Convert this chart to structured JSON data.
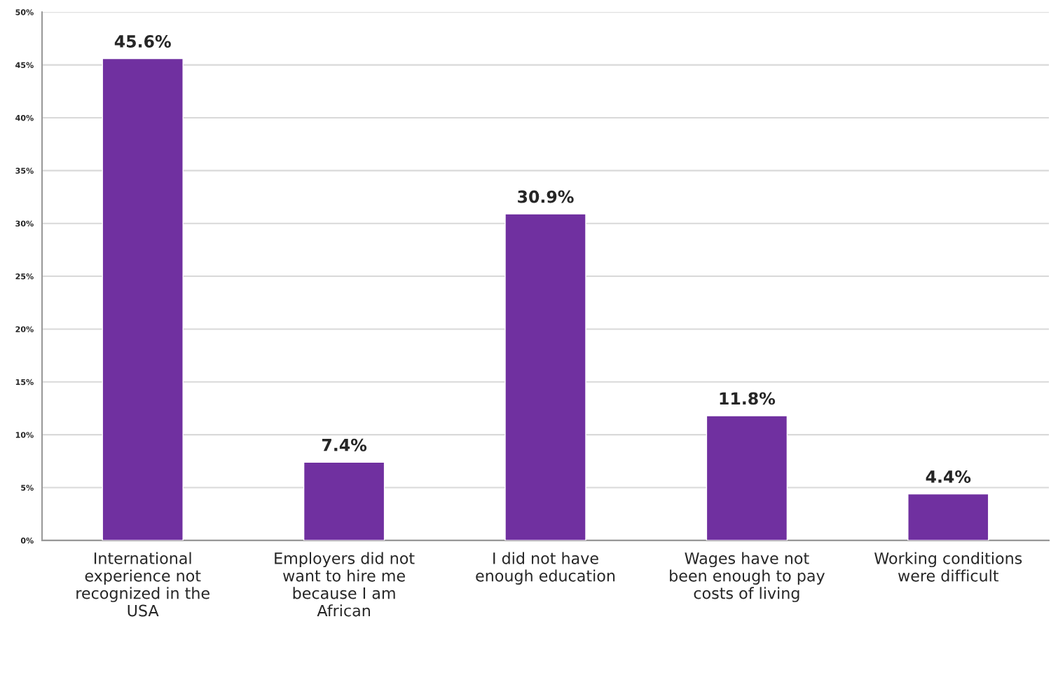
{
  "chart_data": {
    "type": "bar",
    "categories": [
      "International\nexperience not\nrecognized in the\nUSA",
      "Employers did not\nwant to hire me\nbecause I am\nAfrican",
      "I did not have\nenough education",
      "Wages have not\nbeen enough to pay\ncosts of living",
      "Working conditions\nwere difficult"
    ],
    "values": [
      45.6,
      7.4,
      30.9,
      11.8,
      4.4
    ],
    "value_labels": [
      "45.6%",
      "7.4%",
      "30.9%",
      "11.8%",
      "4.4%"
    ],
    "color": "#7030a0",
    "ylim": [
      0,
      50
    ],
    "yticks": [
      {
        "value": 0,
        "label": "0%"
      },
      {
        "value": 5,
        "label": "5%"
      },
      {
        "value": 10,
        "label": "10%"
      },
      {
        "value": 15,
        "label": "15%"
      },
      {
        "value": 20,
        "label": "20%"
      },
      {
        "value": 25,
        "label": "25%"
      },
      {
        "value": 30,
        "label": "30%"
      },
      {
        "value": 35,
        "label": "35%"
      },
      {
        "value": 40,
        "label": "40%"
      },
      {
        "value": 45,
        "label": "45%"
      },
      {
        "value": 50,
        "label": "50%"
      }
    ],
    "grid": "y",
    "legend": false
  }
}
